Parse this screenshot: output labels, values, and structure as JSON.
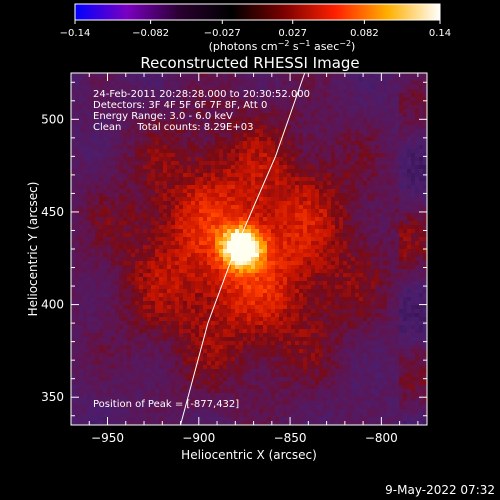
{
  "colorbar": {
    "ticks": [
      "-0.14",
      "-0.082",
      "-0.027",
      "0.027",
      "0.082",
      "0.14"
    ],
    "tick_values": [
      -0.14,
      -0.082,
      -0.027,
      0.027,
      0.082,
      0.14
    ],
    "range": [
      -0.14,
      0.14
    ],
    "units_prefix": "(photons cm",
    "units_exp1": "−2",
    "units_mid": " s",
    "units_exp2": "−1",
    "units_mid2": " asec",
    "units_exp3": "−2",
    "units_suffix": ")",
    "colors": [
      "#0000ff",
      "#7a00c0",
      "#2a0030",
      "#000000",
      "#7a0000",
      "#ff2000",
      "#ffb000",
      "#ffffff"
    ]
  },
  "chart_data": {
    "type": "heatmap",
    "title": "Reconstructed RHESSI Image",
    "xlabel": "Heliocentric X (arcsec)",
    "ylabel": "Heliocentric Y (arcsec)",
    "xlim": [
      -970,
      -775
    ],
    "ylim": [
      335,
      525
    ],
    "xticks": [
      -950,
      -900,
      -850,
      -800
    ],
    "yticks": [
      350,
      400,
      450,
      500
    ],
    "xtick_labels": [
      "−950",
      "−900",
      "−850",
      "−800"
    ],
    "ytick_labels": [
      "350",
      "400",
      "450",
      "500"
    ],
    "peak": {
      "x": -877,
      "y": 432
    },
    "limb_curve": [
      [
        -910,
        335
      ],
      [
        -895,
        390
      ],
      [
        -880,
        430
      ],
      [
        -858,
        480
      ],
      [
        -842,
        525
      ]
    ],
    "info_lines": [
      "24-Feb-2011 20:28:28.000 to 20:30:52.000",
      "Detectors: 3F 4F 5F 6F 7F 8F, Att 0",
      "Energy Range: 3.0 - 6.0 keV",
      "Clean     Total counts: 8.29E+03"
    ],
    "peak_label": "Position of Peak = [-877,432]"
  },
  "footer": {
    "timestamp": "9-May-2022 07:32"
  }
}
